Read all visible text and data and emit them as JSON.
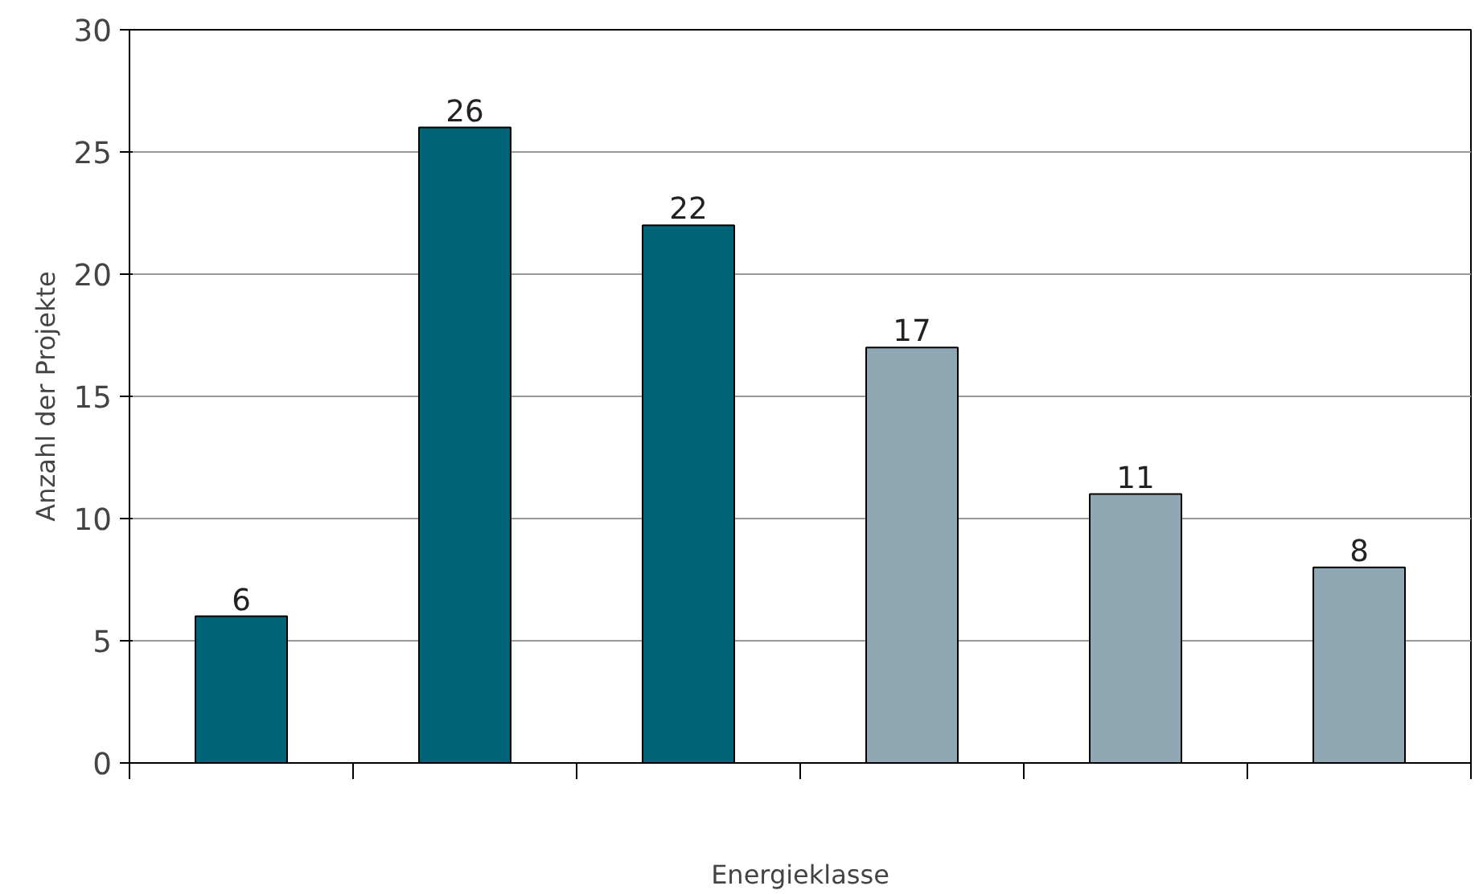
{
  "chart_data": {
    "type": "bar",
    "xlabel": "Energieklasse",
    "ylabel": "Anzahl der Projekte",
    "categories": [
      null,
      null,
      null,
      null,
      null,
      null
    ],
    "values": [
      6,
      26,
      22,
      17,
      11,
      8
    ],
    "colors": [
      "#006478",
      "#006478",
      "#006478",
      "#8fa8b4",
      "#8fa8b4",
      "#8fa8b4"
    ],
    "ylim": [
      0,
      30
    ],
    "yticks": [
      0,
      5,
      10,
      15,
      20,
      25,
      30
    ],
    "grid": "y",
    "data_labels": true
  }
}
